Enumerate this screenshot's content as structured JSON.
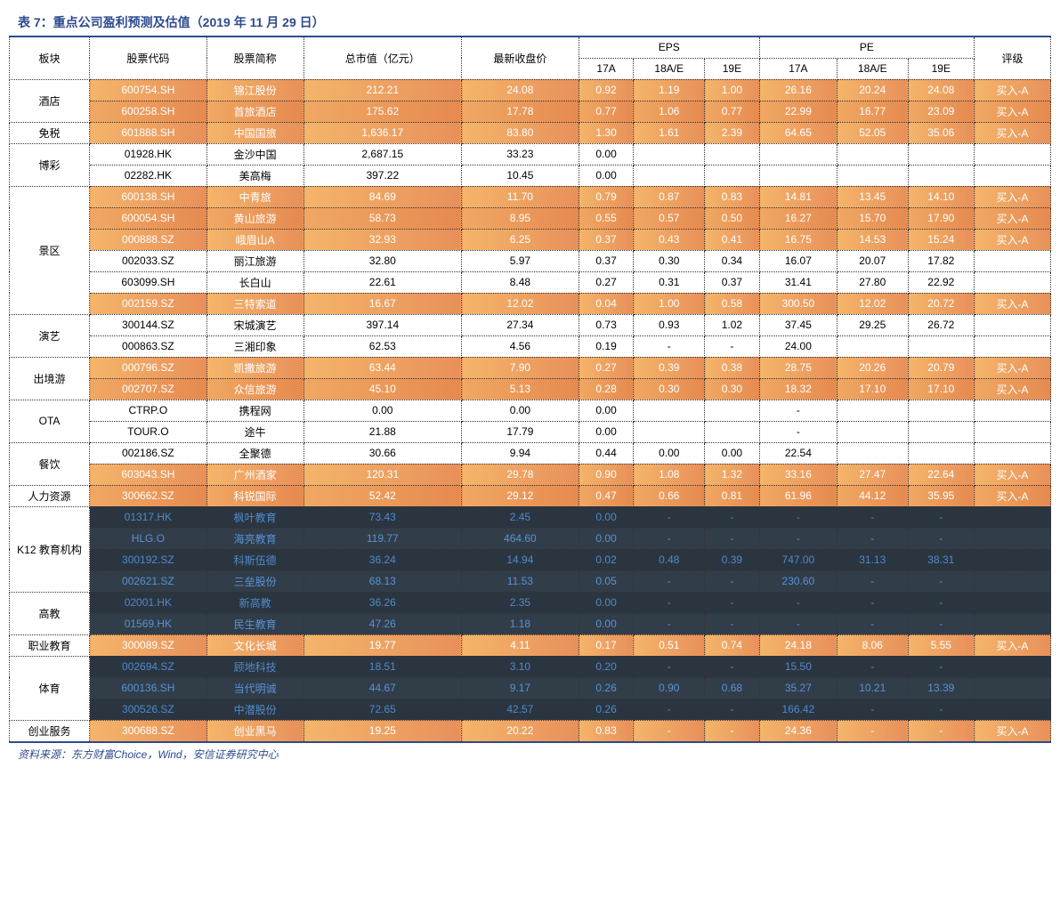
{
  "title": "表 7：重点公司盈利预测及估值（2019 年 11 月 29 日）",
  "source": "资料来源：东方财富Choice，Wind，安信证券研究中心",
  "headers": {
    "sector": "板块",
    "code": "股票代码",
    "name": "股票简称",
    "mktcap": "总市值（亿元）",
    "close": "最新收盘价",
    "eps": "EPS",
    "pe": "PE",
    "rating": "评级",
    "y17a": "17A",
    "y18ae": "18A/E",
    "y19e": "19E"
  },
  "rows": [
    {
      "sector": "酒店",
      "rowspan": 2,
      "code": "600754.SH",
      "name": "锦江股份",
      "mktcap": "212.21",
      "close": "24.08",
      "eps17": "0.92",
      "eps18": "1.19",
      "eps19": "1.00",
      "pe17": "26.16",
      "pe18": "20.24",
      "pe19": "24.08",
      "rating": "买入-A",
      "cls": "row-orange"
    },
    {
      "code": "600258.SH",
      "name": "首旅酒店",
      "mktcap": "175.62",
      "close": "17.78",
      "eps17": "0.77",
      "eps18": "1.06",
      "eps19": "0.77",
      "pe17": "22.99",
      "pe18": "16.77",
      "pe19": "23.09",
      "rating": "买入-A",
      "cls": "row-orange2"
    },
    {
      "sector": "免税",
      "rowspan": 1,
      "code": "601888.SH",
      "name": "中国国旅",
      "mktcap": "1,636.17",
      "close": "83.80",
      "eps17": "1.30",
      "eps18": "1.61",
      "eps19": "2.39",
      "pe17": "64.65",
      "pe18": "52.05",
      "pe19": "35.06",
      "rating": "买入-A",
      "cls": "row-orange"
    },
    {
      "sector": "博彩",
      "rowspan": 2,
      "code": "01928.HK",
      "name": "金沙中国",
      "mktcap": "2,687.15",
      "close": "33.23",
      "eps17": "0.00",
      "eps18": "",
      "eps19": "",
      "pe17": "",
      "pe18": "",
      "pe19": "",
      "rating": "",
      "cls": "row-white"
    },
    {
      "code": "02282.HK",
      "name": "美高梅",
      "mktcap": "397.22",
      "close": "10.45",
      "eps17": "0.00",
      "eps18": "",
      "eps19": "",
      "pe17": "",
      "pe18": "",
      "pe19": "",
      "rating": "",
      "cls": "row-white"
    },
    {
      "sector": "景区",
      "rowspan": 6,
      "code": "600138.SH",
      "name": "中青旅",
      "mktcap": "84.69",
      "close": "11.70",
      "eps17": "0.79",
      "eps18": "0.87",
      "eps19": "0.83",
      "pe17": "14.81",
      "pe18": "13.45",
      "pe19": "14.10",
      "rating": "买入-A",
      "cls": "row-orange"
    },
    {
      "code": "600054.SH",
      "name": "黄山旅游",
      "mktcap": "58.73",
      "close": "8.95",
      "eps17": "0.55",
      "eps18": "0.57",
      "eps19": "0.50",
      "pe17": "16.27",
      "pe18": "15.70",
      "pe19": "17.90",
      "rating": "买入-A",
      "cls": "row-orange2"
    },
    {
      "code": "000888.SZ",
      "name": "峨眉山A",
      "mktcap": "32.93",
      "close": "6.25",
      "eps17": "0.37",
      "eps18": "0.43",
      "eps19": "0.41",
      "pe17": "16.75",
      "pe18": "14.53",
      "pe19": "15.24",
      "rating": "买入-A",
      "cls": "row-orange"
    },
    {
      "code": "002033.SZ",
      "name": "丽江旅游",
      "mktcap": "32.80",
      "close": "5.97",
      "eps17": "0.37",
      "eps18": "0.30",
      "eps19": "0.34",
      "pe17": "16.07",
      "pe18": "20.07",
      "pe19": "17.82",
      "rating": "",
      "cls": "row-white"
    },
    {
      "code": "603099.SH",
      "name": "长白山",
      "mktcap": "22.61",
      "close": "8.48",
      "eps17": "0.27",
      "eps18": "0.31",
      "eps19": "0.37",
      "pe17": "31.41",
      "pe18": "27.80",
      "pe19": "22.92",
      "rating": "",
      "cls": "row-white"
    },
    {
      "code": "002159.SZ",
      "name": "三特索道",
      "mktcap": "16.67",
      "close": "12.02",
      "eps17": "0.04",
      "eps18": "1.00",
      "eps19": "0.58",
      "pe17": "300.50",
      "pe18": "12.02",
      "pe19": "20.72",
      "rating": "买入-A",
      "cls": "row-orange"
    },
    {
      "sector": "演艺",
      "rowspan": 2,
      "code": "300144.SZ",
      "name": "宋城演艺",
      "mktcap": "397.14",
      "close": "27.34",
      "eps17": "0.73",
      "eps18": "0.93",
      "eps19": "1.02",
      "pe17": "37.45",
      "pe18": "29.25",
      "pe19": "26.72",
      "rating": "",
      "cls": "row-white"
    },
    {
      "code": "000863.SZ",
      "name": "三湘印象",
      "mktcap": "62.53",
      "close": "4.56",
      "eps17": "0.19",
      "eps18": "-",
      "eps19": "-",
      "pe17": "24.00",
      "pe18": "",
      "pe19": "",
      "rating": "",
      "cls": "row-white"
    },
    {
      "sector": "出境游",
      "rowspan": 2,
      "code": "000796.SZ",
      "name": "凯撒旅游",
      "mktcap": "63.44",
      "close": "7.90",
      "eps17": "0.27",
      "eps18": "0.39",
      "eps19": "0.38",
      "pe17": "28.75",
      "pe18": "20.26",
      "pe19": "20.79",
      "rating": "买入-A",
      "cls": "row-orange"
    },
    {
      "code": "002707.SZ",
      "name": "众信旅游",
      "mktcap": "45.10",
      "close": "5.13",
      "eps17": "0.28",
      "eps18": "0.30",
      "eps19": "0.30",
      "pe17": "18.32",
      "pe18": "17.10",
      "pe19": "17.10",
      "rating": "买入-A",
      "cls": "row-orange2"
    },
    {
      "sector": "OTA",
      "rowspan": 2,
      "code": "CTRP.O",
      "name": "携程网",
      "mktcap": "0.00",
      "close": "0.00",
      "eps17": "0.00",
      "eps18": "",
      "eps19": "",
      "pe17": "-",
      "pe18": "",
      "pe19": "",
      "rating": "",
      "cls": "row-white"
    },
    {
      "code": "TOUR.O",
      "name": "途牛",
      "mktcap": "21.88",
      "close": "17.79",
      "eps17": "0.00",
      "eps18": "",
      "eps19": "",
      "pe17": "-",
      "pe18": "",
      "pe19": "",
      "rating": "",
      "cls": "row-white"
    },
    {
      "sector": "餐饮",
      "rowspan": 2,
      "code": "002186.SZ",
      "name": "全聚德",
      "mktcap": "30.66",
      "close": "9.94",
      "eps17": "0.44",
      "eps18": "0.00",
      "eps19": "0.00",
      "pe17": "22.54",
      "pe18": "",
      "pe19": "",
      "rating": "",
      "cls": "row-white"
    },
    {
      "code": "603043.SH",
      "name": "广州酒家",
      "mktcap": "120.31",
      "close": "29.78",
      "eps17": "0.90",
      "eps18": "1.08",
      "eps19": "1.32",
      "pe17": "33.16",
      "pe18": "27.47",
      "pe19": "22.64",
      "rating": "买入-A",
      "cls": "row-orange"
    },
    {
      "sector": "人力资源",
      "rowspan": 1,
      "code": "300662.SZ",
      "name": "科锐国际",
      "mktcap": "52.42",
      "close": "29.12",
      "eps17": "0.47",
      "eps18": "0.66",
      "eps19": "0.81",
      "pe17": "61.96",
      "pe18": "44.12",
      "pe19": "35.95",
      "rating": "买入-A",
      "cls": "row-orange2"
    },
    {
      "sector": "K12 教育机构",
      "rowspan": 4,
      "code": "01317.HK",
      "name": "枫叶教育",
      "mktcap": "73.43",
      "close": "2.45",
      "eps17": "0.00",
      "eps18": "-",
      "eps19": "-",
      "pe17": "-",
      "pe18": "-",
      "pe19": "-",
      "rating": "",
      "cls": "row-dark"
    },
    {
      "code": "HLG.O",
      "name": "海亮教育",
      "mktcap": "119.77",
      "close": "464.60",
      "eps17": "0.00",
      "eps18": "-",
      "eps19": "-",
      "pe17": "-",
      "pe18": "-",
      "pe19": "-",
      "rating": "",
      "cls": "row-dark2"
    },
    {
      "code": "300192.SZ",
      "name": "科斯伍德",
      "mktcap": "36.24",
      "close": "14.94",
      "eps17": "0.02",
      "eps18": "0.48",
      "eps19": "0.39",
      "pe17": "747.00",
      "pe18": "31.13",
      "pe19": "38.31",
      "rating": "",
      "cls": "row-dark"
    },
    {
      "code": "002621.SZ",
      "name": "三垒股份",
      "mktcap": "68.13",
      "close": "11.53",
      "eps17": "0.05",
      "eps18": "-",
      "eps19": "-",
      "pe17": "230.60",
      "pe18": "-",
      "pe19": "-",
      "rating": "",
      "cls": "row-dark2"
    },
    {
      "sector": "高教",
      "rowspan": 2,
      "code": "02001.HK",
      "name": "新高教",
      "mktcap": "36.26",
      "close": "2.35",
      "eps17": "0.00",
      "eps18": "-",
      "eps19": "-",
      "pe17": "-",
      "pe18": "-",
      "pe19": "-",
      "rating": "",
      "cls": "row-dark"
    },
    {
      "code": "01569.HK",
      "name": "民生教育",
      "mktcap": "47.26",
      "close": "1.18",
      "eps17": "0.00",
      "eps18": "-",
      "eps19": "-",
      "pe17": "-",
      "pe18": "-",
      "pe19": "-",
      "rating": "",
      "cls": "row-dark2"
    },
    {
      "sector": "职业教育",
      "rowspan": 1,
      "code": "300089.SZ",
      "name": "文化长城",
      "mktcap": "19.77",
      "close": "4.11",
      "eps17": "0.17",
      "eps18": "0.51",
      "eps19": "0.74",
      "pe17": "24.18",
      "pe18": "8.06",
      "pe19": "5.55",
      "rating": "买入-A",
      "cls": "row-orange"
    },
    {
      "sector": "体育",
      "rowspan": 3,
      "code": "002694.SZ",
      "name": "顾地科技",
      "mktcap": "18.51",
      "close": "3.10",
      "eps17": "0.20",
      "eps18": "-",
      "eps19": "-",
      "pe17": "15.50",
      "pe18": "-",
      "pe19": "-",
      "rating": "",
      "cls": "row-dark"
    },
    {
      "code": "600136.SH",
      "name": "当代明诚",
      "mktcap": "44.67",
      "close": "9.17",
      "eps17": "0.26",
      "eps18": "0.90",
      "eps19": "0.68",
      "pe17": "35.27",
      "pe18": "10.21",
      "pe19": "13.39",
      "rating": "",
      "cls": "row-dark2"
    },
    {
      "code": "300526.SZ",
      "name": "中潜股份",
      "mktcap": "72.65",
      "close": "42.57",
      "eps17": "0.26",
      "eps18": "-",
      "eps19": "-",
      "pe17": "166.42",
      "pe18": "-",
      "pe19": "-",
      "rating": "",
      "cls": "row-dark"
    },
    {
      "sector": "创业服务",
      "rowspan": 1,
      "code": "300688.SZ",
      "name": "创业黑马",
      "mktcap": "19.25",
      "close": "20.22",
      "eps17": "0.83",
      "eps18": "-",
      "eps19": "-",
      "pe17": "24.36",
      "pe18": "-",
      "pe19": "-",
      "rating": "买入-A",
      "cls": "row-orange"
    }
  ]
}
